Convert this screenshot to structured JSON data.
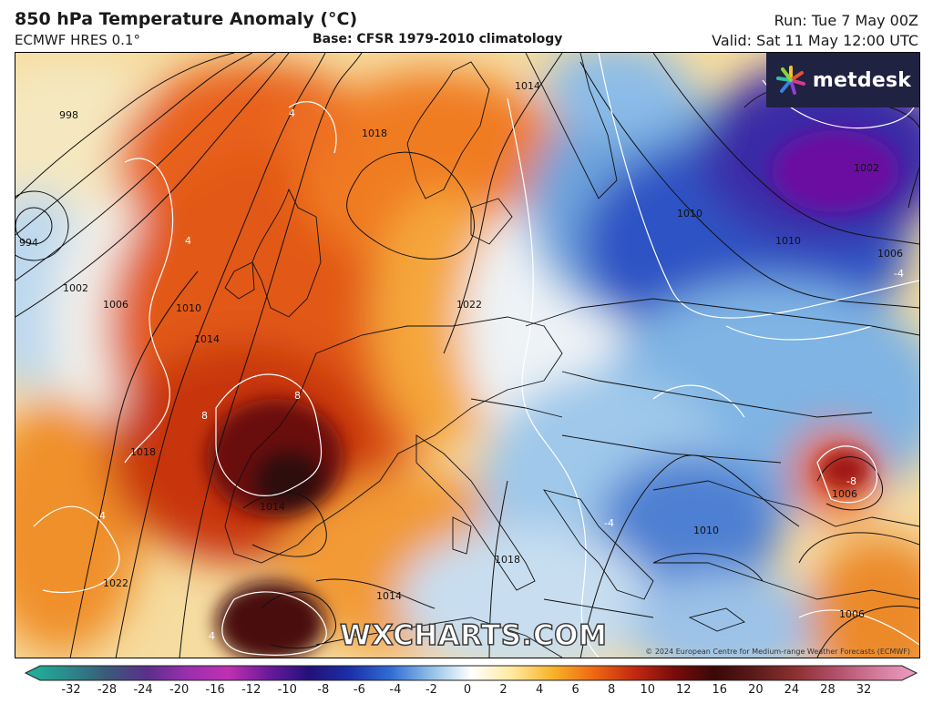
{
  "header": {
    "title": "850 hPa Temperature Anomaly (°C)",
    "subtitle": "ECMWF HRES 0.1°",
    "base": "Base: CFSR 1979-2010 climatology",
    "run": "Run: Tue 7 May 00Z",
    "valid": "Valid: Sat 11 May 12:00 UTC"
  },
  "logo": {
    "text": "metdesk",
    "icon": "metdesk-star-icon"
  },
  "watermark": "WXCHARTS.COM",
  "copyright": "© 2024 European Centre for Medium-range Weather Forecasts (ECMWF)",
  "isobar_labels": [
    "998",
    "994",
    "1002",
    "1006",
    "1010",
    "1014",
    "1018",
    "1018",
    "1022",
    "1014",
    "1014",
    "1022",
    "1018",
    "1014",
    "1010",
    "1010",
    "1006",
    "1006",
    "1002",
    "1010",
    "1006"
  ],
  "anomaly_labels": [
    "4",
    "4",
    "8",
    "8",
    "-4",
    "-8",
    "4",
    "4",
    "-4"
  ],
  "colorbar": {
    "ticks": [
      "-32",
      "-28",
      "-24",
      "-20",
      "-16",
      "-12",
      "-10",
      "-8",
      "-6",
      "-4",
      "-2",
      "0",
      "2",
      "4",
      "6",
      "8",
      "10",
      "12",
      "16",
      "20",
      "24",
      "28",
      "32"
    ],
    "colors": [
      "#1fb59a",
      "#2a8c8a",
      "#3a5a7a",
      "#5b2f8a",
      "#9a2fb0",
      "#c030b0",
      "#6a1a9a",
      "#23107a",
      "#1c2fa8",
      "#2f6cd4",
      "#8fbfe6",
      "#ffffff",
      "#ffe9a0",
      "#f7b42a",
      "#ef6a12",
      "#c42a10",
      "#7a0c0c",
      "#3a0808",
      "#5c1a1a",
      "#8c3030",
      "#b0506a",
      "#d27a9a",
      "#ee9cc4"
    ]
  }
}
